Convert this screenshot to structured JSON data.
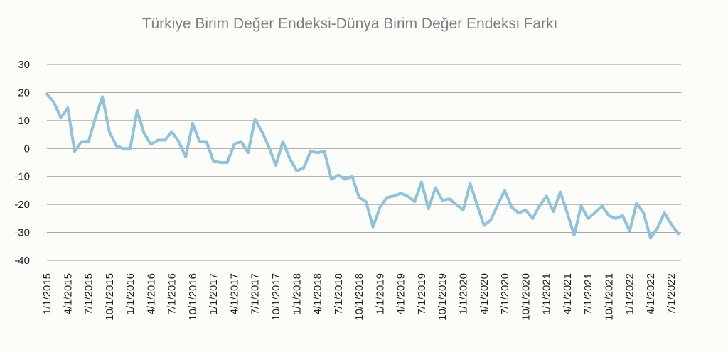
{
  "chart_data": {
    "type": "line",
    "title": "Türkiye Birim Değer Endeksi-Dünya Birim Değer Endeksi Farkı",
    "xlabel": "",
    "ylabel": "",
    "ylim": [
      -40,
      30
    ],
    "yticks": [
      "30",
      "20",
      "10",
      "0",
      "-10",
      "-20",
      "-30",
      "-40"
    ],
    "grid": true,
    "legend": "none",
    "color": "#8ec3e0",
    "x_tick_labels": [
      "1/1/2015",
      "4/1/2015",
      "7/1/2015",
      "10/1/2015",
      "1/1/2016",
      "4/1/2016",
      "7/1/2016",
      "10/1/2016",
      "1/1/2017",
      "4/1/2017",
      "7/1/2017",
      "10/1/2017",
      "1/1/2018",
      "4/1/2018",
      "7/1/2018",
      "10/1/2018",
      "1/1/2019",
      "4/1/2019",
      "7/1/2019",
      "10/1/2019",
      "1/1/2020",
      "4/1/2020",
      "7/1/2020",
      "10/1/2020",
      "1/1/2021",
      "4/1/2021",
      "7/1/2021",
      "10/1/2021",
      "1/1/2022",
      "4/1/2022",
      "7/1/2022"
    ],
    "x": [
      "2015-01",
      "2015-02",
      "2015-03",
      "2015-04",
      "2015-05",
      "2015-06",
      "2015-07",
      "2015-08",
      "2015-09",
      "2015-10",
      "2015-11",
      "2015-12",
      "2016-01",
      "2016-02",
      "2016-03",
      "2016-04",
      "2016-05",
      "2016-06",
      "2016-07",
      "2016-08",
      "2016-09",
      "2016-10",
      "2016-11",
      "2016-12",
      "2017-01",
      "2017-02",
      "2017-03",
      "2017-04",
      "2017-05",
      "2017-06",
      "2017-07",
      "2017-08",
      "2017-09",
      "2017-10",
      "2017-11",
      "2017-12",
      "2018-01",
      "2018-02",
      "2018-03",
      "2018-04",
      "2018-05",
      "2018-06",
      "2018-07",
      "2018-08",
      "2018-09",
      "2018-10",
      "2018-11",
      "2018-12",
      "2019-01",
      "2019-02",
      "2019-03",
      "2019-04",
      "2019-05",
      "2019-06",
      "2019-07",
      "2019-08",
      "2019-09",
      "2019-10",
      "2019-11",
      "2019-12",
      "2020-01",
      "2020-02",
      "2020-03",
      "2020-04",
      "2020-05",
      "2020-06",
      "2020-07",
      "2020-08",
      "2020-09",
      "2020-10",
      "2020-11",
      "2020-12",
      "2021-01",
      "2021-02",
      "2021-03",
      "2021-04",
      "2021-05",
      "2021-06",
      "2021-07",
      "2021-08",
      "2021-09",
      "2021-10",
      "2021-11",
      "2021-12",
      "2022-01",
      "2022-02",
      "2022-03",
      "2022-04",
      "2022-05",
      "2022-06",
      "2022-07",
      "2022-08"
    ],
    "series": [
      {
        "name": "",
        "values": [
          19.5,
          16.5,
          11,
          14.5,
          -1,
          2.5,
          2.5,
          11,
          18.5,
          6,
          1,
          0,
          0,
          13.5,
          5.5,
          1.5,
          3,
          3,
          6,
          2.5,
          -3,
          9,
          2.5,
          2.5,
          -4.5,
          -5,
          -5,
          1.5,
          2.5,
          -1.5,
          10.5,
          6,
          0.5,
          -6,
          2.5,
          -3.5,
          -8,
          -7,
          -1,
          -1.5,
          -1,
          -11,
          -9.5,
          -11,
          -10,
          -17.5,
          -19,
          -28,
          -21,
          -17.5,
          -17,
          -16,
          -17,
          -19,
          -12,
          -21.5,
          -14,
          -18.5,
          -18,
          -20,
          -22,
          -12.5,
          -20,
          -27.5,
          -25.5,
          -20,
          -15,
          -21,
          -23,
          -22,
          -25,
          -20.5,
          -17,
          -22.5,
          -15.5,
          -23,
          -31,
          -20.5,
          -25,
          -23,
          -20.5,
          -24,
          -25,
          -24,
          -29.5,
          -19.5,
          -23,
          -32,
          -28.5,
          -23,
          -27,
          -30.5
        ]
      }
    ]
  }
}
